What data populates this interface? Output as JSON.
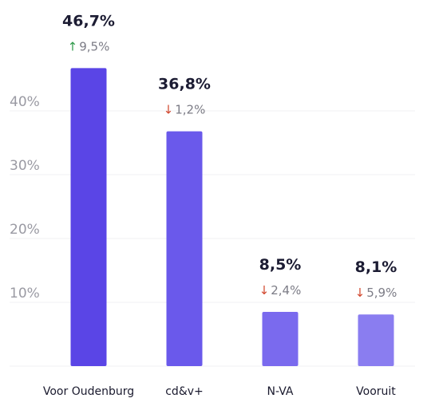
{
  "chart_data": {
    "type": "bar",
    "title": "",
    "xlabel": "",
    "ylabel": "",
    "ylim": [
      0,
      48
    ],
    "yticks": [
      {
        "value": 10,
        "label": "10%"
      },
      {
        "value": 20,
        "label": "20%"
      },
      {
        "value": 30,
        "label": "30%"
      },
      {
        "value": 40,
        "label": "40%"
      }
    ],
    "grid": true,
    "categories": [
      "Voor Oudenburg",
      "cd&v+",
      "N-VA",
      "Vooruit"
    ],
    "values": [
      46.7,
      36.8,
      8.5,
      8.1
    ],
    "value_labels": [
      "46,7%",
      "36,8%",
      "8,5%",
      "8,1%"
    ],
    "changes": [
      {
        "direction": "up",
        "value": 9.5,
        "label": "9,5%"
      },
      {
        "direction": "down",
        "value": 1.2,
        "label": "1,2%"
      },
      {
        "direction": "down",
        "value": 2.4,
        "label": "2,4%"
      },
      {
        "direction": "down",
        "value": 5.9,
        "label": "5,9%"
      }
    ],
    "bar_colors": [
      "#5a45e6",
      "#6a59eb",
      "#7a6aee",
      "#8a7df0"
    ],
    "up_color": "#2f9a4a",
    "down_color": "#d1462d",
    "up_arrow": "↑",
    "down_arrow": "↓"
  }
}
